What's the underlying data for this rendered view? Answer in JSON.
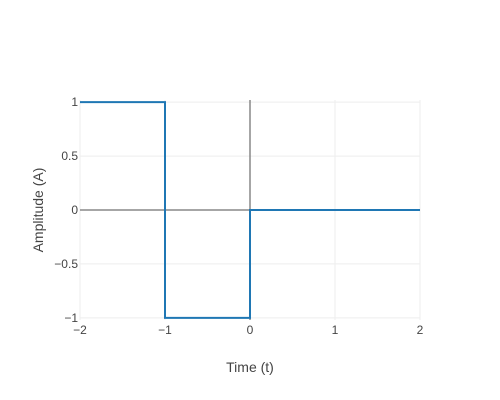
{
  "chart_data": {
    "type": "line",
    "title": "",
    "xlabel": "Time (t)",
    "ylabel": "Amplitude (A)",
    "xlim": [
      -2,
      2
    ],
    "ylim": [
      -1.02,
      1.02
    ],
    "grid": true,
    "legend": "none",
    "x_ticks": [
      -2,
      -1,
      0,
      1,
      2
    ],
    "x_tick_labels": [
      "−2",
      "−1",
      "0",
      "1",
      "2"
    ],
    "y_ticks": [
      -1,
      -0.5,
      0,
      0.5,
      1
    ],
    "y_tick_labels": [
      "−1",
      "−0.5",
      "0",
      "0.5",
      "1"
    ],
    "series": [
      {
        "color": "#1f77b4",
        "x": [
          -2,
          -1,
          -1,
          0,
          0,
          2
        ],
        "y": [
          1,
          1,
          -1,
          -1,
          0,
          0
        ]
      }
    ],
    "colors": {
      "grid": "#eeeeee",
      "zeroline": "#888888",
      "text": "#444444"
    }
  }
}
